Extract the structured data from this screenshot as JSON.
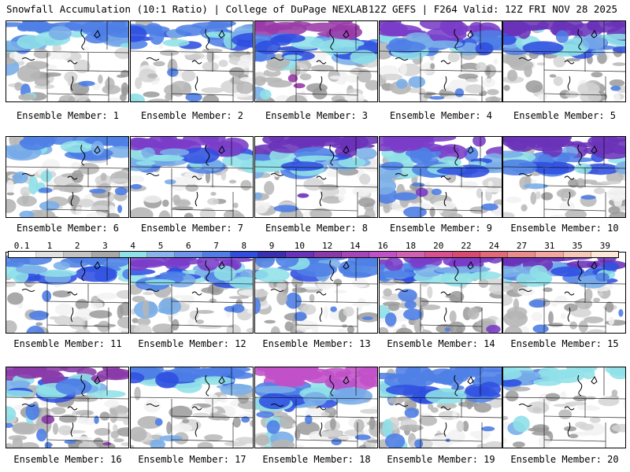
{
  "header": {
    "title": "Snowfall Accumulation (10:1 Ratio) | College of DuPage NEXLAB",
    "run_info": "12Z GEFS | F264 Valid: 12Z FRI NOV 28 2025"
  },
  "colors": {
    "background": "#ffffff",
    "grays": [
      "#f2f2f2",
      "#d4d4d4",
      "#b6b6b6",
      "#9a9a9a"
    ],
    "blues": [
      "#8fe0e8",
      "#7aaee8",
      "#4f7fe6",
      "#2f4ee0"
    ],
    "purples": [
      "#7a3cc8",
      "#8a3aa8",
      "#c050c8",
      "#d060b0"
    ]
  },
  "colorbar": {
    "labels": [
      "0.1",
      "1",
      "2",
      "3",
      "4",
      "5",
      "6",
      "7",
      "8",
      "9",
      "10",
      "12",
      "14",
      "16",
      "18",
      "20",
      "22",
      "24",
      "27",
      "31",
      "35",
      "39"
    ],
    "colors": [
      "#ffffff",
      "#e2e2e2",
      "#c4c4c4",
      "#a8a8a8",
      "#8fe0e8",
      "#8ab4ec",
      "#6f96ea",
      "#4f7fe6",
      "#2f4ee0",
      "#3a2fb0",
      "#6a32b8",
      "#8a3aa8",
      "#a446b8",
      "#c050c8",
      "#d060b0",
      "#d8508c",
      "#d84a70",
      "#e06a78",
      "#e88c8c",
      "#f0a8a0",
      "#f6c8b8",
      "#fce8d8"
    ]
  },
  "members": [
    {
      "caption": "Ensemble Member: 1",
      "snow": {
        "north": 0.55,
        "south": 0.25,
        "west": 0.45
      },
      "top_color": "#4f7fe6"
    },
    {
      "caption": "Ensemble Member: 2",
      "snow": {
        "north": 0.5,
        "south": 0.35,
        "west": 0.3
      },
      "top_color": "#4f7fe6"
    },
    {
      "caption": "Ensemble Member: 3",
      "snow": {
        "north": 0.9,
        "south": 0.3,
        "west": 0.6
      },
      "top_color": "#9a3aa8"
    },
    {
      "caption": "Ensemble Member: 4",
      "snow": {
        "north": 0.75,
        "south": 0.35,
        "west": 0.35
      },
      "top_color": "#7a3cc8"
    },
    {
      "caption": "Ensemble Member: 5",
      "snow": {
        "north": 0.8,
        "south": 0.2,
        "west": 0.3
      },
      "top_color": "#6a32b8"
    },
    {
      "caption": "Ensemble Member: 6",
      "snow": {
        "north": 0.4,
        "south": 0.6,
        "west": 0.7
      },
      "top_color": "#4f7fe6"
    },
    {
      "caption": "Ensemble Member: 7",
      "snow": {
        "north": 0.7,
        "south": 0.05,
        "west": 0.3
      },
      "top_color": "#7a3cc8"
    },
    {
      "caption": "Ensemble Member: 8",
      "snow": {
        "north": 0.85,
        "south": 0.2,
        "west": 0.4
      },
      "top_color": "#6a32b8"
    },
    {
      "caption": "Ensemble Member: 9",
      "snow": {
        "north": 0.85,
        "south": 0.5,
        "west": 0.55
      },
      "top_color": "#7a3cc8"
    },
    {
      "caption": "Ensemble Member: 10",
      "snow": {
        "north": 0.8,
        "south": 0.15,
        "west": 0.3
      },
      "top_color": "#6a32b8"
    },
    {
      "caption": "Ensemble Member: 11",
      "snow": {
        "north": 0.55,
        "south": 0.1,
        "west": 0.3
      },
      "top_color": "#4f7fe6"
    },
    {
      "caption": "Ensemble Member: 12",
      "snow": {
        "north": 0.75,
        "south": 0.25,
        "west": 0.3
      },
      "top_color": "#7a3cc8"
    },
    {
      "caption": "Ensemble Member: 13",
      "snow": {
        "north": 0.45,
        "south": 0.4,
        "west": 0.4
      },
      "top_color": "#4f7fe6"
    },
    {
      "caption": "Ensemble Member: 14",
      "snow": {
        "north": 0.6,
        "south": 0.45,
        "west": 0.5
      },
      "top_color": "#7a3cc8"
    },
    {
      "caption": "Ensemble Member: 15",
      "snow": {
        "north": 0.7,
        "south": 0.3,
        "west": 0.3
      },
      "top_color": "#6a32b8"
    },
    {
      "caption": "Ensemble Member: 16",
      "snow": {
        "north": 0.6,
        "south": 0.55,
        "west": 0.8
      },
      "top_color": "#8a3aa8"
    },
    {
      "caption": "Ensemble Member: 17",
      "snow": {
        "north": 0.45,
        "south": 0.25,
        "west": 0.3
      },
      "top_color": "#4f7fe6"
    },
    {
      "caption": "Ensemble Member: 18",
      "snow": {
        "north": 0.95,
        "south": 0.45,
        "west": 0.6
      },
      "top_color": "#c050c8"
    },
    {
      "caption": "Ensemble Member: 19",
      "snow": {
        "north": 0.7,
        "south": 0.3,
        "west": 0.5
      },
      "top_color": "#4f7fe6"
    },
    {
      "caption": "Ensemble Member: 20",
      "snow": {
        "north": 0.25,
        "south": 0.1,
        "west": 0.2
      },
      "top_color": "#8fe0e8"
    }
  ]
}
